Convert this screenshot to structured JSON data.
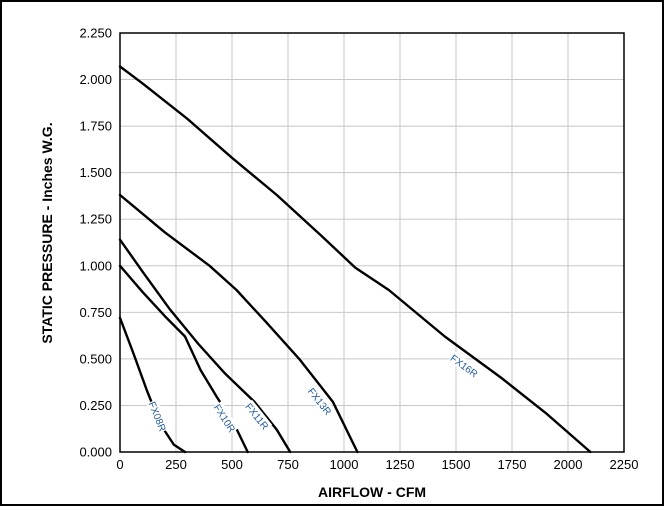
{
  "chart_data": {
    "type": "line",
    "title": "",
    "xlabel": "AIRFLOW - CFM",
    "ylabel": "STATIC PRESSURE - Inches W.G.",
    "xlim": [
      0,
      2250
    ],
    "ylim": [
      0,
      2.25
    ],
    "grid": true,
    "legend": "none",
    "x_ticks": [
      "0",
      "250",
      "500",
      "750",
      "1000",
      "1250",
      "1500",
      "1750",
      "2000",
      "2250"
    ],
    "y_ticks": [
      "0.000",
      "0.250",
      "0.500",
      "0.750",
      "1.000",
      "1.250",
      "1.500",
      "1.750",
      "2.000",
      "2.250"
    ],
    "series": [
      {
        "name": "FX08R",
        "label_at": [
          165,
          0.19
        ],
        "points": [
          [
            0,
            0.72
          ],
          [
            60,
            0.53
          ],
          [
            120,
            0.33
          ],
          [
            180,
            0.15
          ],
          [
            240,
            0.04
          ],
          [
            290,
            0.0
          ]
        ]
      },
      {
        "name": "FX10R",
        "label_at": [
          465,
          0.18
        ],
        "points": [
          [
            0,
            1.0
          ],
          [
            100,
            0.86
          ],
          [
            200,
            0.73
          ],
          [
            290,
            0.62
          ],
          [
            360,
            0.44
          ],
          [
            430,
            0.3
          ],
          [
            510,
            0.15
          ],
          [
            570,
            0.0
          ]
        ]
      },
      {
        "name": "FX11R",
        "label_at": [
          610,
          0.19
        ],
        "points": [
          [
            0,
            1.14
          ],
          [
            100,
            0.97
          ],
          [
            220,
            0.77
          ],
          [
            350,
            0.58
          ],
          [
            470,
            0.42
          ],
          [
            600,
            0.27
          ],
          [
            700,
            0.12
          ],
          [
            760,
            0.0
          ]
        ]
      },
      {
        "name": "FX13R",
        "label_at": [
          890,
          0.27
        ],
        "points": [
          [
            0,
            1.38
          ],
          [
            200,
            1.18
          ],
          [
            400,
            1.0
          ],
          [
            520,
            0.87
          ],
          [
            650,
            0.7
          ],
          [
            800,
            0.5
          ],
          [
            950,
            0.27
          ],
          [
            1060,
            0.0
          ]
        ]
      },
      {
        "name": "FX16R",
        "label_at": [
          1535,
          0.46
        ],
        "points": [
          [
            0,
            2.07
          ],
          [
            100,
            1.98
          ],
          [
            300,
            1.79
          ],
          [
            500,
            1.58
          ],
          [
            700,
            1.38
          ],
          [
            900,
            1.16
          ],
          [
            1050,
            0.99
          ],
          [
            1200,
            0.87
          ],
          [
            1450,
            0.62
          ],
          [
            1700,
            0.4
          ],
          [
            1900,
            0.21
          ],
          [
            2100,
            0.0
          ]
        ]
      }
    ],
    "colors": {
      "curve": "#000000",
      "grid": "#c8c8c8",
      "label": "#1f5a9a"
    }
  }
}
